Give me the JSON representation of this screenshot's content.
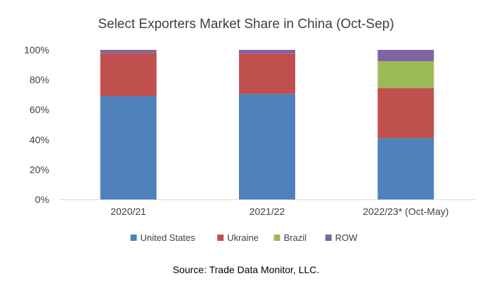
{
  "chart_data": {
    "type": "bar",
    "stacked": true,
    "title": "Select Exporters Market Share in China (Oct-Sep)",
    "categories": [
      "2020/21",
      "2021/22",
      "2022/23* (Oct-May)"
    ],
    "series": [
      {
        "name": "United States",
        "color": "#4F81BD",
        "values": [
          69,
          70.5,
          41
        ]
      },
      {
        "name": "Ukraine",
        "color": "#C0504D",
        "values": [
          29,
          27,
          33.5
        ]
      },
      {
        "name": "Brazil",
        "color": "#9BBB59",
        "values": [
          0,
          0,
          18
        ]
      },
      {
        "name": "ROW",
        "color": "#8064A2",
        "values": [
          2,
          2.5,
          7.5
        ]
      }
    ],
    "yticks": [
      "0%",
      "20%",
      "40%",
      "60%",
      "80%",
      "100%"
    ],
    "ylim": [
      0,
      100
    ],
    "grid": false,
    "legend": "bottom",
    "source": "Source: Trade Data Monitor, LLC."
  }
}
